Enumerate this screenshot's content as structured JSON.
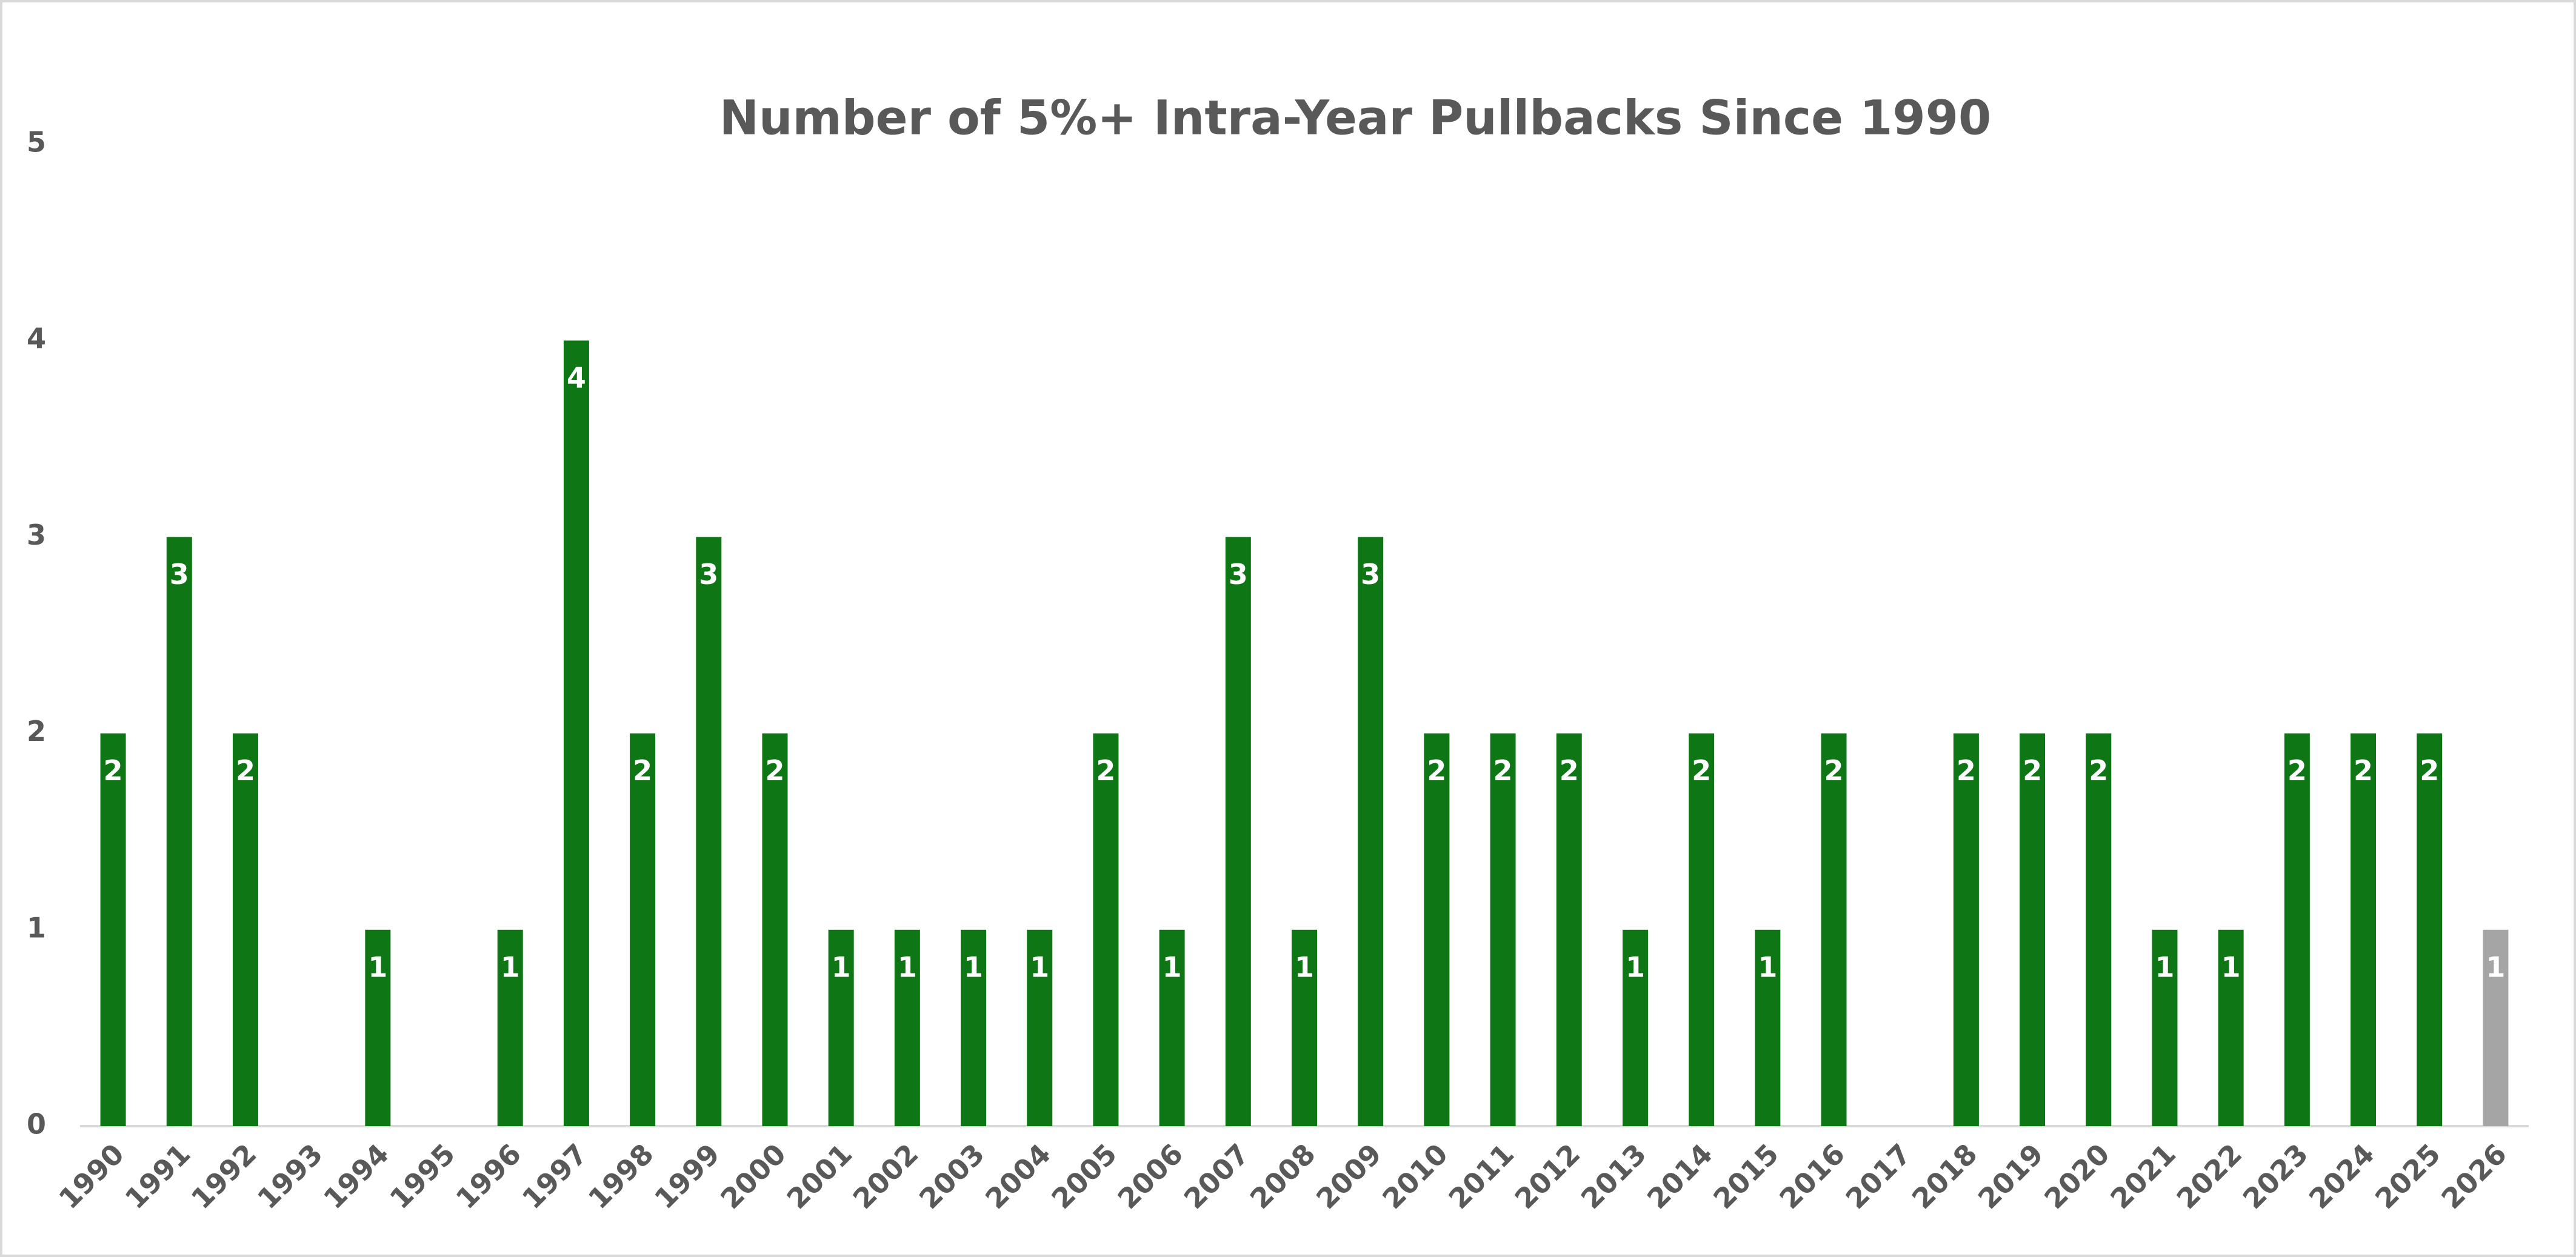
{
  "chart_data": {
    "type": "bar",
    "title": "Number of 5%+ Intra-Year Pullbacks Since 1990",
    "categories": [
      "1990",
      "1991",
      "1992",
      "1993",
      "1994",
      "1995",
      "1996",
      "1997",
      "1998",
      "1999",
      "2000",
      "2001",
      "2002",
      "2003",
      "2004",
      "2005",
      "2006",
      "2007",
      "2008",
      "2009",
      "2010",
      "2011",
      "2012",
      "2013",
      "2014",
      "2015",
      "2016",
      "2017",
      "2018",
      "2019",
      "2020",
      "2021",
      "2022",
      "2023",
      "2024",
      "2025",
      "2026"
    ],
    "values": [
      2,
      3,
      2,
      0,
      1,
      0,
      1,
      4,
      2,
      3,
      2,
      1,
      1,
      1,
      1,
      2,
      1,
      3,
      1,
      3,
      2,
      2,
      2,
      1,
      2,
      1,
      2,
      0,
      2,
      2,
      2,
      1,
      1,
      2,
      2,
      2,
      1
    ],
    "colors": [
      "#0e7615",
      "#0e7615",
      "#0e7615",
      "#0e7615",
      "#0e7615",
      "#0e7615",
      "#0e7615",
      "#0e7615",
      "#0e7615",
      "#0e7615",
      "#0e7615",
      "#0e7615",
      "#0e7615",
      "#0e7615",
      "#0e7615",
      "#0e7615",
      "#0e7615",
      "#0e7615",
      "#0e7615",
      "#0e7615",
      "#0e7615",
      "#0e7615",
      "#0e7615",
      "#0e7615",
      "#0e7615",
      "#0e7615",
      "#0e7615",
      "#0e7615",
      "#0e7615",
      "#0e7615",
      "#0e7615",
      "#0e7615",
      "#0e7615",
      "#0e7615",
      "#0e7615",
      "#0e7615",
      "#a5a5a5"
    ],
    "ylim": [
      0,
      5
    ],
    "yticks": [
      0,
      1,
      2,
      3,
      4,
      5
    ],
    "grid": false
  }
}
